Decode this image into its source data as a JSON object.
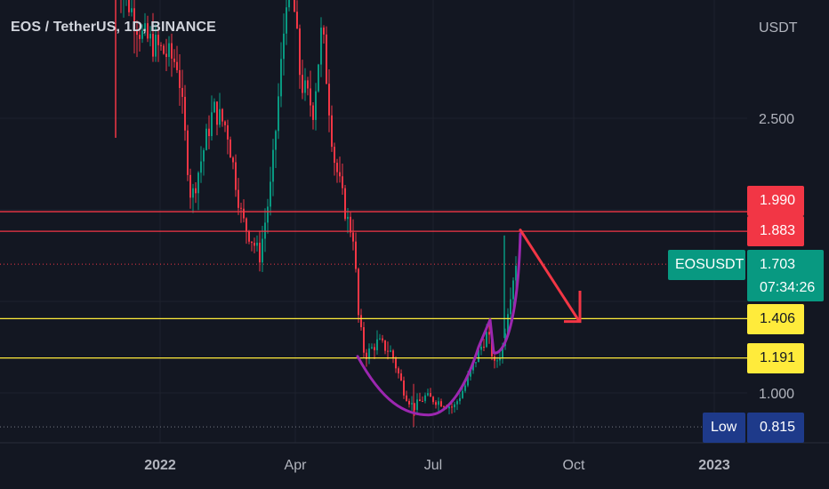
{
  "header": {
    "symbol": "EOS / TetherUS, 1D, BINANCE"
  },
  "chart_data": {
    "type": "candlestick",
    "quote_currency": "USDT",
    "y_ticks": [
      "2.500",
      "1.000"
    ],
    "x_ticks": [
      "2022",
      "Apr",
      "Jul",
      "Oct",
      "2023"
    ],
    "horizontal_lines": [
      {
        "price": "1.990",
        "color": "#f23645"
      },
      {
        "price": "1.883",
        "color": "#f23645"
      },
      {
        "price": "1.406",
        "color": "#ffeb3b"
      },
      {
        "price": "1.191",
        "color": "#ffeb3b"
      }
    ],
    "last_price": {
      "label": "EOSUSDT",
      "price": "1.703",
      "countdown": "07:34:26",
      "color": "#089981"
    },
    "low": {
      "label": "Low",
      "price": "0.815"
    },
    "up_color": "#089981",
    "down_color": "#f23645",
    "annotation_color": "#9c27b0",
    "arrow_color": "#f23645"
  }
}
